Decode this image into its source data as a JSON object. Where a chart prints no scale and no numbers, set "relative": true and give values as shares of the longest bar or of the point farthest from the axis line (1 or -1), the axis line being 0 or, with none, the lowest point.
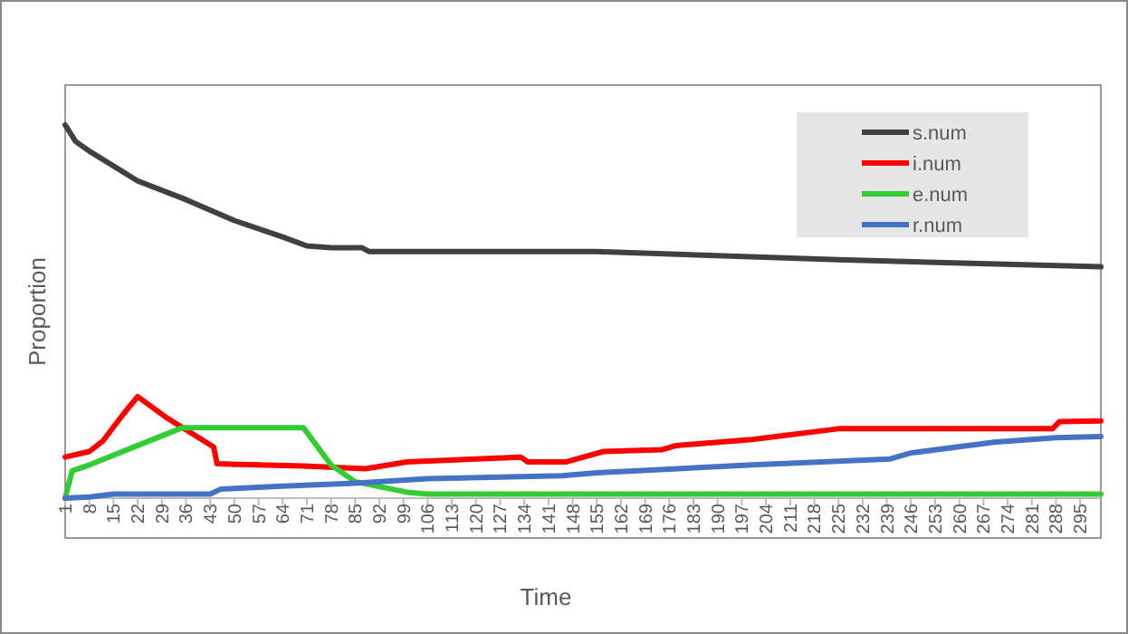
{
  "chart_data": {
    "type": "line",
    "relative": true,
    "xlabel": "Time",
    "ylabel": "Proportion",
    "legend": "top right",
    "marker": "none",
    "line_style": "solid",
    "xlim": [
      1,
      301
    ],
    "xticks": [
      1,
      8,
      15,
      22,
      29,
      36,
      43,
      50,
      57,
      64,
      71,
      78,
      85,
      92,
      99,
      106,
      113,
      120,
      127,
      134,
      141,
      148,
      155,
      162,
      169,
      176,
      183,
      190,
      197,
      204,
      211,
      218,
      225,
      232,
      239,
      246,
      253,
      260,
      267,
      274,
      281,
      288,
      295
    ],
    "series": [
      {
        "name": "s.num",
        "color": "#404040",
        "x": [
          1,
          4,
          8,
          22,
          36,
          50,
          64,
          71,
          78,
          87,
          89,
          155,
          225,
          301
        ],
        "values": [
          1.0,
          0.956,
          0.93,
          0.85,
          0.8,
          0.744,
          0.7,
          0.676,
          0.671,
          0.671,
          0.661,
          0.661,
          0.639,
          0.62
        ]
      },
      {
        "name": "i.num",
        "color": "#ff0000",
        "x": [
          1,
          8,
          12,
          18,
          22,
          30,
          44,
          45,
          70,
          88,
          100,
          133,
          135,
          146,
          157,
          174,
          178,
          200,
          225,
          287,
          289,
          301
        ],
        "values": [
          0.11,
          0.125,
          0.154,
          0.227,
          0.272,
          0.218,
          0.137,
          0.092,
          0.086,
          0.079,
          0.097,
          0.11,
          0.097,
          0.097,
          0.125,
          0.13,
          0.141,
          0.157,
          0.186,
          0.186,
          0.205,
          0.207
        ]
      },
      {
        "name": "e.num",
        "color": "#33cc33",
        "x": [
          1,
          3,
          8,
          22,
          35,
          70,
          78,
          85,
          100,
          106,
          301
        ],
        "values": [
          0,
          0.073,
          0.089,
          0.141,
          0.189,
          0.189,
          0.089,
          0.044,
          0.016,
          0.011,
          0.011
        ]
      },
      {
        "name": "r.num",
        "color": "#4472c4",
        "x": [
          1,
          8,
          15,
          43,
          46,
          64,
          85,
          106,
          145,
          155,
          200,
          240,
          246,
          270,
          288,
          301
        ],
        "values": [
          0,
          0.003,
          0.011,
          0.011,
          0.024,
          0.032,
          0.04,
          0.052,
          0.06,
          0.068,
          0.089,
          0.105,
          0.121,
          0.15,
          0.162,
          0.165
        ]
      }
    ]
  }
}
